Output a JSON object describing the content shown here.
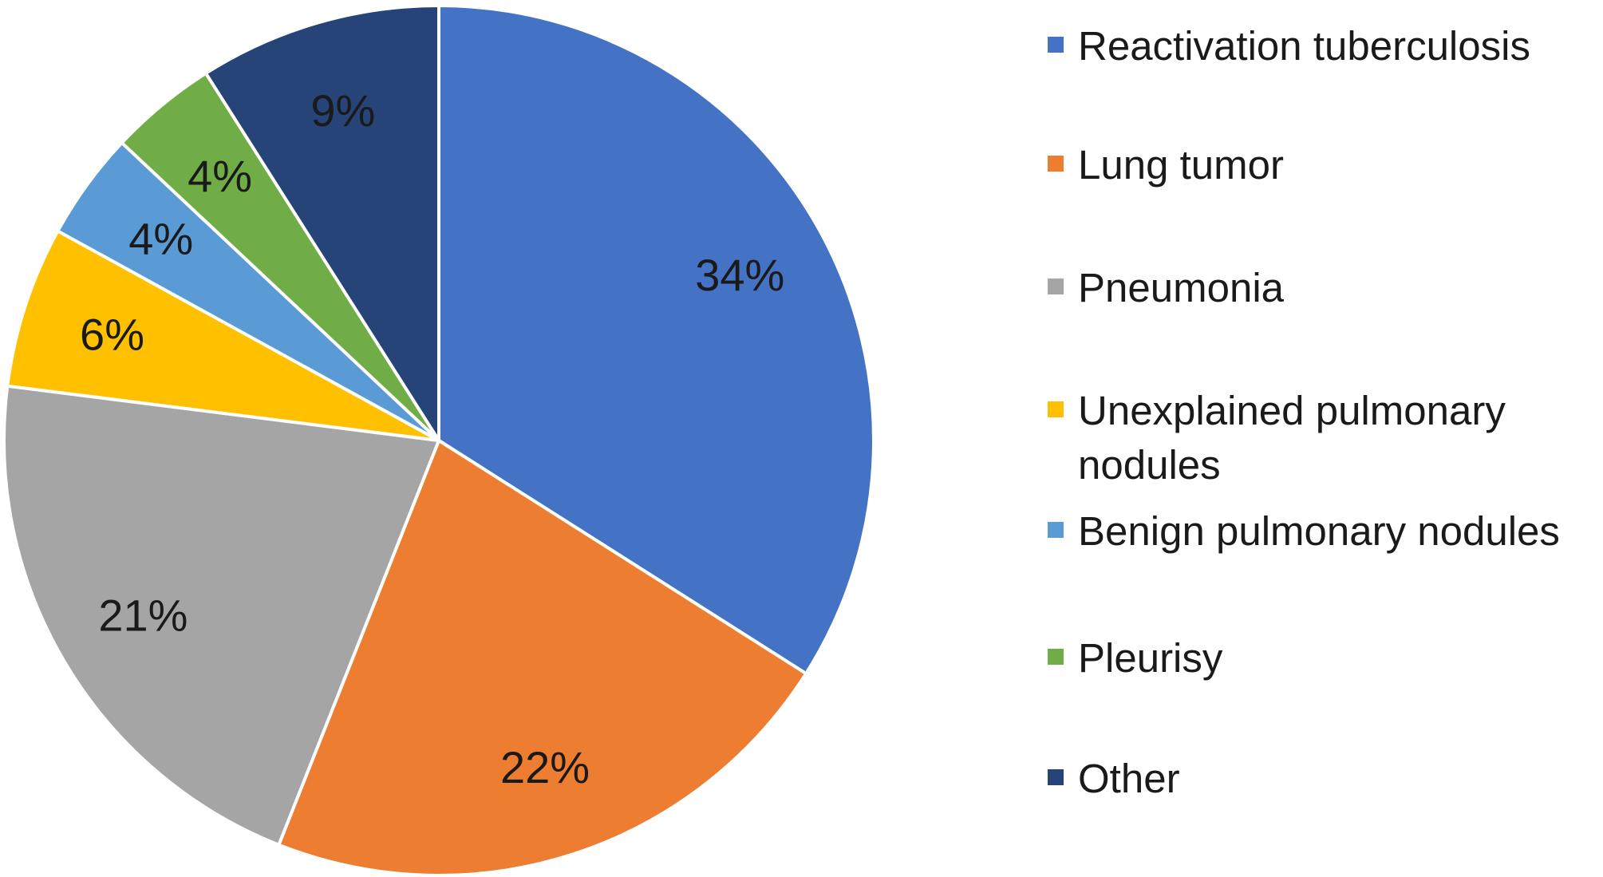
{
  "chart_data": {
    "type": "pie",
    "labels": [
      "Reactivation tuberculosis",
      "Lung tumor",
      "Pneumonia",
      "Unexplained pulmonary nodules",
      "Benign pulmonary nodules",
      "Pleurisy",
      "Other"
    ],
    "values": [
      34,
      22,
      21,
      6,
      4,
      4,
      9
    ],
    "value_labels": [
      "34%",
      "22%",
      "21%",
      "6%",
      "4%",
      "4%",
      "9%"
    ],
    "colors": [
      "#4472C4",
      "#ED7D31",
      "#A5A5A5",
      "#FFC000",
      "#5B9BD5",
      "#70AD47",
      "#264478"
    ],
    "start_angle_deg": 0,
    "direction": "clockwise",
    "legend_position": "right"
  },
  "legend": {
    "items": [
      {
        "label": "Reactivation tuberculosis",
        "color": "#4472C4"
      },
      {
        "label": "Lung tumor",
        "color": "#ED7D31"
      },
      {
        "label": "Pneumonia",
        "color": "#A5A5A5"
      },
      {
        "label": "Unexplained pulmonary nodules",
        "color": "#FFC000"
      },
      {
        "label": "Benign pulmonary nodules",
        "color": "#5B9BD5"
      },
      {
        "label": "Pleurisy",
        "color": "#70AD47"
      },
      {
        "label": "Other",
        "color": "#264478"
      }
    ]
  }
}
